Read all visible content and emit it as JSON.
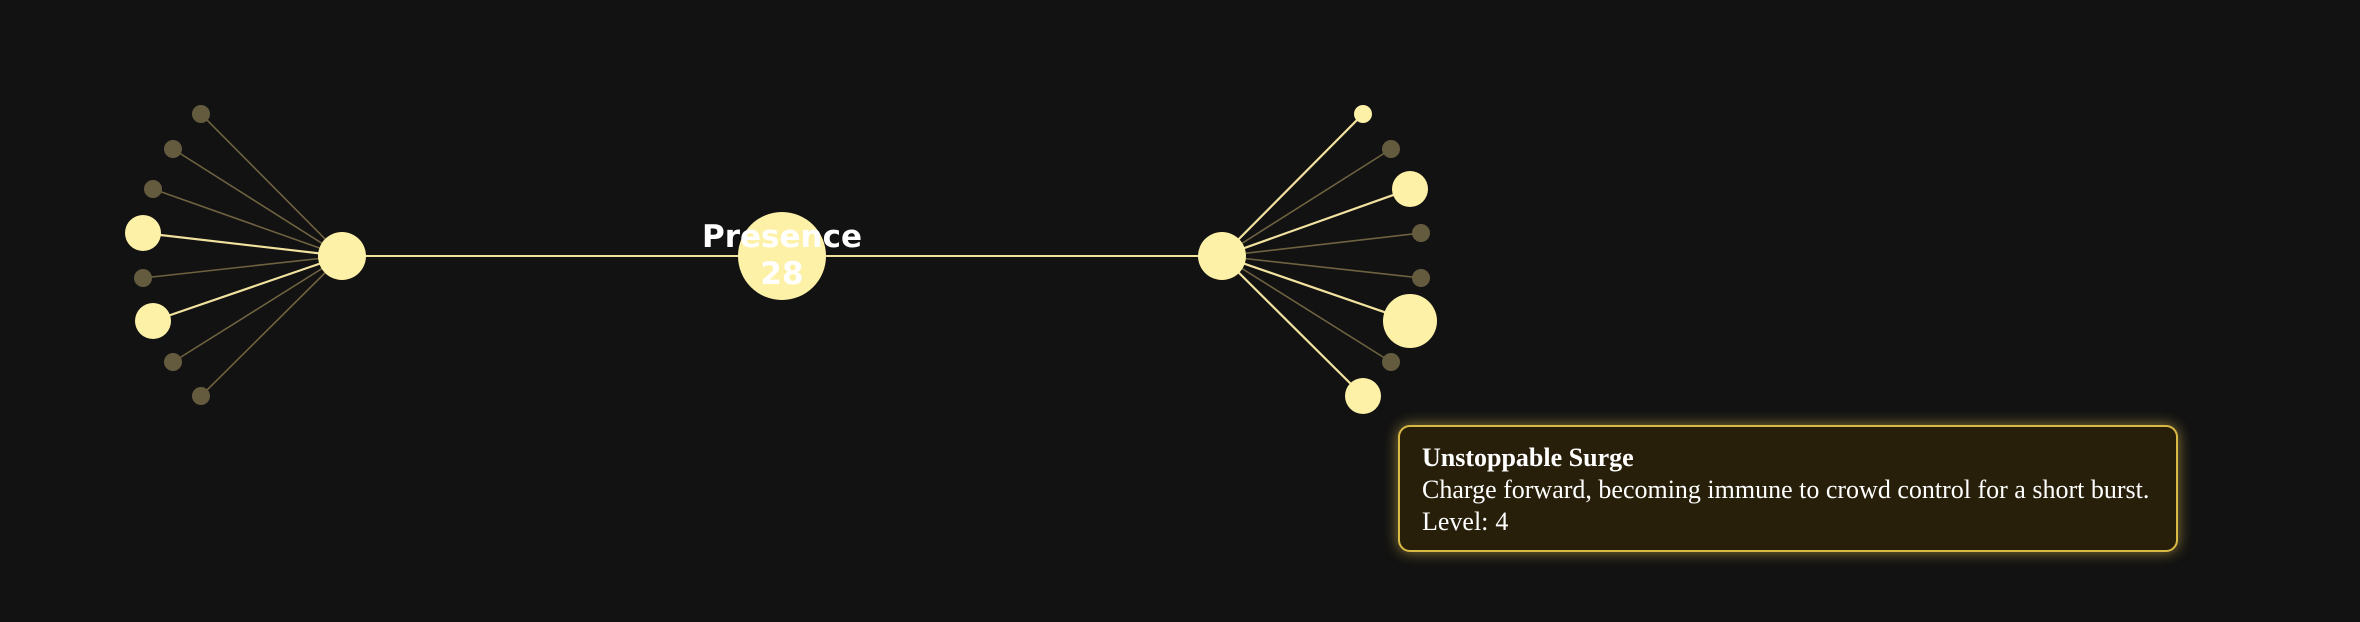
{
  "center_node": {
    "title": "Presence",
    "points": "28"
  },
  "colors": {
    "background": "#121212",
    "active": "#fdf1a7",
    "inactive": "#645b3f",
    "link_active": "#f2e2a0",
    "link_inactive": "#6e6240",
    "tooltip_bg": "#281f0a",
    "tooltip_border": "#d9b945"
  },
  "left_branch": {
    "leaves": [
      {
        "active": false,
        "size": "small"
      },
      {
        "active": false,
        "size": "small"
      },
      {
        "active": false,
        "size": "small"
      },
      {
        "active": true,
        "size": "medium"
      },
      {
        "active": false,
        "size": "small"
      },
      {
        "active": true,
        "size": "medium"
      },
      {
        "active": false,
        "size": "small"
      },
      {
        "active": false,
        "size": "small"
      }
    ]
  },
  "right_branch": {
    "leaves": [
      {
        "active": true,
        "size": "small"
      },
      {
        "active": false,
        "size": "small"
      },
      {
        "active": true,
        "size": "medium"
      },
      {
        "active": false,
        "size": "small"
      },
      {
        "active": false,
        "size": "small"
      },
      {
        "active": true,
        "size": "large"
      },
      {
        "active": false,
        "size": "small"
      },
      {
        "active": true,
        "size": "medium"
      }
    ]
  },
  "tooltip": {
    "title": "Unstoppable Surge",
    "description": "Charge forward, becoming immune to crowd control for a short burst.",
    "level_label": "Level:",
    "level_value": "4"
  }
}
